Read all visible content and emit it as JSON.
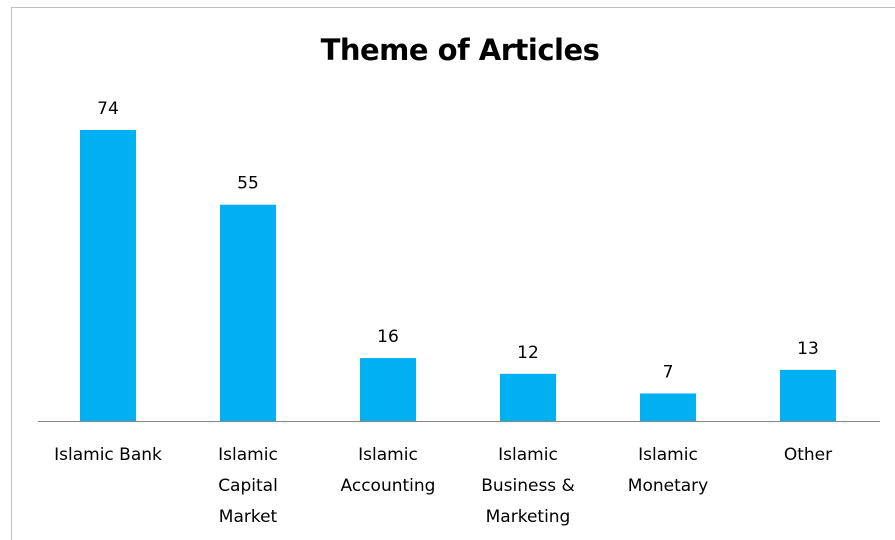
{
  "chart_data": {
    "type": "bar",
    "title": "Theme of Articles",
    "categories": [
      [
        "Islamic Bank"
      ],
      [
        "Islamic",
        "Capital",
        "Market"
      ],
      [
        "Islamic",
        "Accounting"
      ],
      [
        "Islamic",
        "Business &",
        "Marketing"
      ],
      [
        "Islamic",
        "Monetary"
      ],
      [
        "Other"
      ]
    ],
    "values": [
      74,
      55,
      16,
      12,
      7,
      13
    ],
    "ylim": [
      0,
      80
    ],
    "grid": false,
    "legend": "none",
    "colors": {
      "bar": "#00b0f0",
      "axis": "#868686"
    }
  }
}
